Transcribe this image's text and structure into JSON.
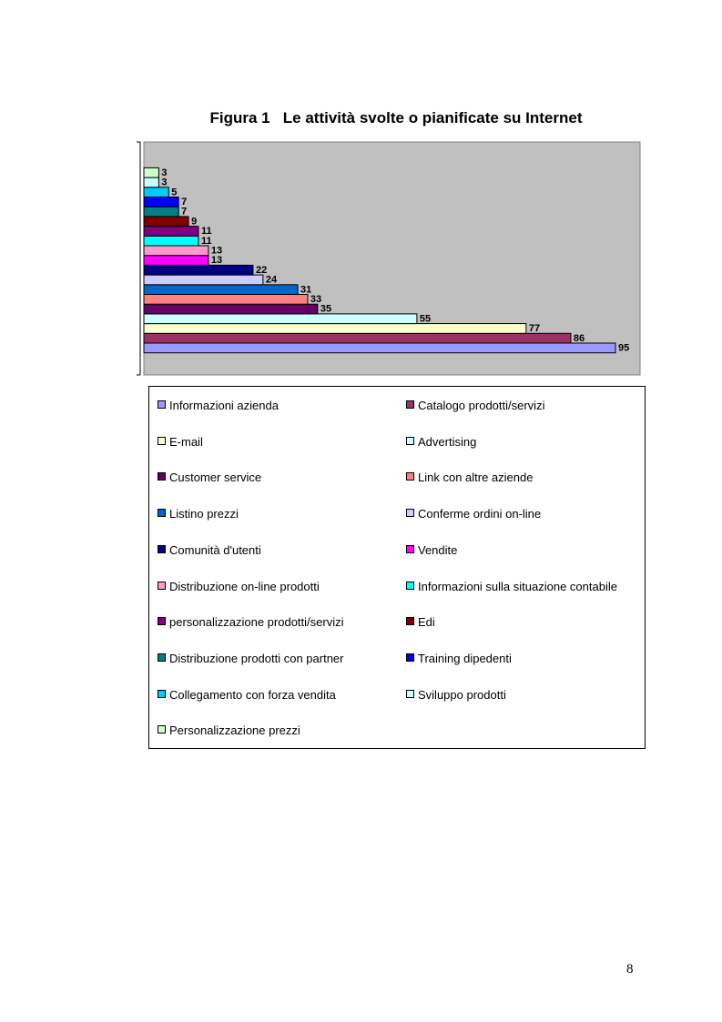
{
  "figure": {
    "title": "Figura 1   Le attività svolte o pianificate su Internet"
  },
  "chart_data": {
    "type": "bar",
    "orientation": "horizontal",
    "title": "Figura 1   Le attività svolte o pianificate su Internet",
    "xlim": [
      0,
      100
    ],
    "grid": false,
    "legend_placement": "bottom",
    "categories": [
      "Informazioni azienda",
      "Catalogo prodotti/servizi",
      "E-mail",
      "Advertising",
      "Customer service",
      "Link con altre aziende",
      "Listino prezzi",
      "Conferme ordini on-line",
      "Comunità d'utenti",
      "Vendite",
      "Distribuzione on-line prodotti",
      "Informazioni sulla situazione contabile",
      "personalizzazione prodotti/servizi",
      "Edi",
      "Distribuzione prodotti con partner",
      "Training dipedenti",
      "Collegamento con forza vendita",
      "Sviluppo prodotti",
      "Personalizzazione prezzi"
    ],
    "values": [
      95,
      86,
      77,
      55,
      35,
      33,
      31,
      24,
      22,
      13,
      13,
      11,
      11,
      9,
      7,
      7,
      5,
      3,
      3
    ],
    "colors": [
      "#9999ff",
      "#993366",
      "#ffffcc",
      "#ccffff",
      "#660066",
      "#ff8080",
      "#0066cc",
      "#ccccff",
      "#000080",
      "#ff00ff",
      "#ff99cc",
      "#00ffff",
      "#800080",
      "#800000",
      "#008080",
      "#0000ff",
      "#00ccff",
      "#ccffff",
      "#ccffcc"
    ],
    "plot_area_color": "#c0c0c0"
  },
  "page": {
    "number": "8"
  }
}
